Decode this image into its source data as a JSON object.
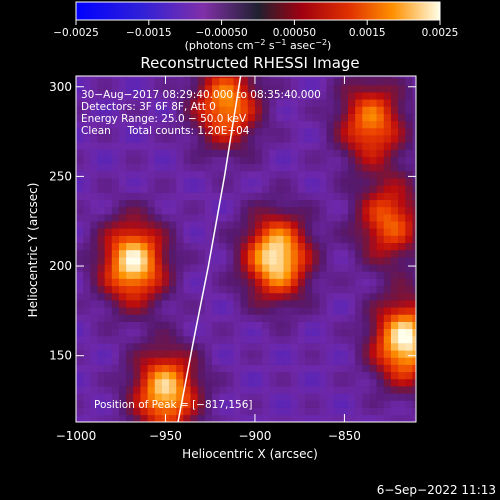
{
  "chart_data": {
    "type": "heatmap",
    "title": "Reconstructed RHESSI Image",
    "xlabel": "Heliocentric X (arcsec)",
    "ylabel": "Heliocentric Y (arcsec)",
    "xlim": [
      -1000,
      -810
    ],
    "ylim": [
      113,
      306
    ],
    "x_ticks": [
      -1000,
      -950,
      -900,
      -850
    ],
    "x_tick_labels": [
      "−1000",
      "−950",
      "−900",
      "−850"
    ],
    "y_ticks": [
      150,
      200,
      250,
      300
    ],
    "y_tick_labels": [
      "150",
      "200",
      "250",
      "300"
    ],
    "colorbar": {
      "range": [
        -0.0025,
        0.0025
      ],
      "ticks": [
        -0.0025,
        -0.0015,
        -0.0005,
        0.0005,
        0.0015,
        0.0025
      ],
      "tick_labels": [
        "−0.0025",
        "−0.0015",
        "−0.00050",
        "0.00050",
        "0.0015",
        "0.0025"
      ],
      "label_prefix": "(photons cm",
      "label_sup1": "−2",
      "label_mid": " s",
      "label_sup2": "−1",
      "label_mid2": " asec",
      "label_sup3": "−2",
      "label_suffix": ")"
    },
    "annotations": [
      "30−Aug−2017 08:29:40.000 to 08:35:40.000",
      "Detectors: 3F 6F 8F, Att 0",
      "Energy Range: 25.0 − 50.0 keV",
      "Clean     Total counts: 1.20E+04"
    ],
    "peak_text": "Position of Peak = [−817,156]",
    "sources": [
      {
        "x": -968,
        "y": 202,
        "peak": 0.0024
      },
      {
        "x": -888,
        "y": 205,
        "peak": 0.0025
      },
      {
        "x": -816,
        "y": 158,
        "peak": 0.0025
      },
      {
        "x": -950,
        "y": 130,
        "peak": 0.0022
      },
      {
        "x": -916,
        "y": 290,
        "peak": 0.0018
      },
      {
        "x": -835,
        "y": 280,
        "peak": 0.0016
      },
      {
        "x": -825,
        "y": 225,
        "peak": 0.0014
      }
    ],
    "limb_curve": [
      [
        -943,
        113
      ],
      [
        -934,
        160
      ],
      [
        -926,
        200
      ],
      [
        -917,
        250
      ],
      [
        -908,
        306
      ]
    ],
    "grid": false
  },
  "timestamp": "6−Sep−2022 11:13"
}
